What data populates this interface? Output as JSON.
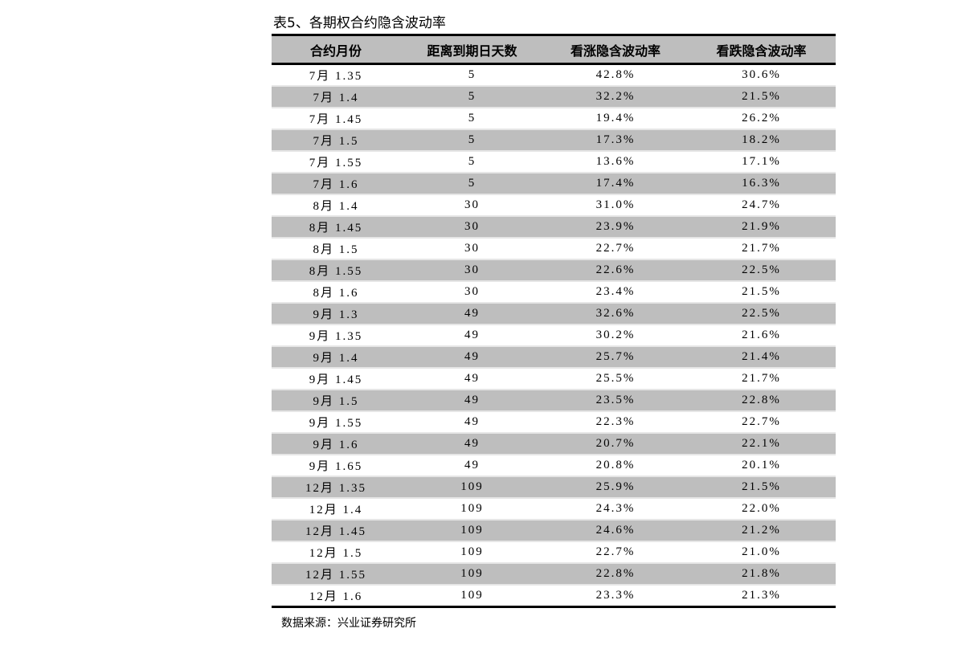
{
  "title": "表5、各期权合约隐含波动率",
  "columns": [
    "合约月份",
    "距离到期日天数",
    "看涨隐含波动率",
    "看跌隐含波动率"
  ],
  "rows": [
    [
      "7月 1.35",
      "5",
      "42.8%",
      "30.6%"
    ],
    [
      "7月 1.4",
      "5",
      "32.2%",
      "21.5%"
    ],
    [
      "7月 1.45",
      "5",
      "19.4%",
      "26.2%"
    ],
    [
      "7月 1.5",
      "5",
      "17.3%",
      "18.2%"
    ],
    [
      "7月 1.55",
      "5",
      "13.6%",
      "17.1%"
    ],
    [
      "7月 1.6",
      "5",
      "17.4%",
      "16.3%"
    ],
    [
      "8月 1.4",
      "30",
      "31.0%",
      "24.7%"
    ],
    [
      "8月 1.45",
      "30",
      "23.9%",
      "21.9%"
    ],
    [
      "8月 1.5",
      "30",
      "22.7%",
      "21.7%"
    ],
    [
      "8月 1.55",
      "30",
      "22.6%",
      "22.5%"
    ],
    [
      "8月 1.6",
      "30",
      "23.4%",
      "21.5%"
    ],
    [
      "9月 1.3",
      "49",
      "32.6%",
      "22.5%"
    ],
    [
      "9月 1.35",
      "49",
      "30.2%",
      "21.6%"
    ],
    [
      "9月 1.4",
      "49",
      "25.7%",
      "21.4%"
    ],
    [
      "9月 1.45",
      "49",
      "25.5%",
      "21.7%"
    ],
    [
      "9月 1.5",
      "49",
      "23.5%",
      "22.8%"
    ],
    [
      "9月 1.55",
      "49",
      "22.3%",
      "22.7%"
    ],
    [
      "9月 1.6",
      "49",
      "20.7%",
      "22.1%"
    ],
    [
      "9月 1.65",
      "49",
      "20.8%",
      "20.1%"
    ],
    [
      "12月 1.35",
      "109",
      "25.9%",
      "21.5%"
    ],
    [
      "12月 1.4",
      "109",
      "24.3%",
      "22.0%"
    ],
    [
      "12月 1.45",
      "109",
      "24.6%",
      "21.2%"
    ],
    [
      "12月 1.5",
      "109",
      "22.7%",
      "21.0%"
    ],
    [
      "12月 1.55",
      "109",
      "22.8%",
      "21.8%"
    ],
    [
      "12月 1.6",
      "109",
      "23.3%",
      "21.3%"
    ]
  ],
  "source_note": "数据来源：兴业证券研究所",
  "colors": {
    "header_bg": "#bebebe",
    "alt_row_bg": "#bebebe",
    "rule": "#000000"
  }
}
